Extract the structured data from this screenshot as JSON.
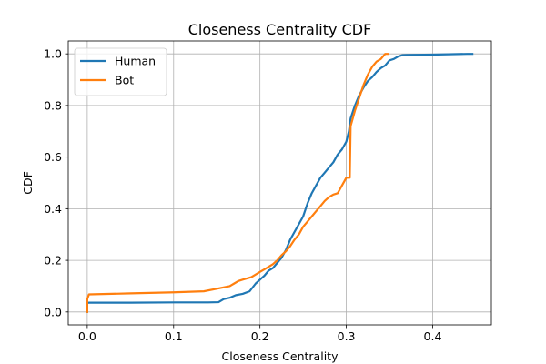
{
  "chart_data": {
    "type": "line",
    "title": "Closeness Centrality CDF",
    "xlabel": "Closeness Centrality",
    "ylabel": "CDF",
    "xlim": [
      -0.022,
      0.468
    ],
    "ylim": [
      -0.05,
      1.05
    ],
    "xticks": [
      0.0,
      0.1,
      0.2,
      0.3,
      0.4
    ],
    "xtick_labels": [
      "0.0",
      "0.1",
      "0.2",
      "0.3",
      "0.4"
    ],
    "yticks": [
      0.0,
      0.2,
      0.4,
      0.6,
      0.8,
      1.0
    ],
    "ytick_labels": [
      "0.0",
      "0.2",
      "0.4",
      "0.6",
      "0.8",
      "1.0"
    ],
    "grid": true,
    "legend_position": "top-left",
    "series": [
      {
        "name": "Human",
        "color": "#1f77b4",
        "x": [
          0.0,
          0.0,
          0.002,
          0.05,
          0.1,
          0.14,
          0.152,
          0.158,
          0.165,
          0.172,
          0.18,
          0.188,
          0.195,
          0.2,
          0.205,
          0.21,
          0.215,
          0.22,
          0.225,
          0.23,
          0.235,
          0.24,
          0.245,
          0.25,
          0.255,
          0.26,
          0.265,
          0.27,
          0.275,
          0.28,
          0.285,
          0.29,
          0.295,
          0.3,
          0.303,
          0.305,
          0.31,
          0.315,
          0.32,
          0.325,
          0.33,
          0.335,
          0.34,
          0.345,
          0.35,
          0.355,
          0.36,
          0.365,
          0.37,
          0.4,
          0.44,
          0.446
        ],
        "y": [
          0.0,
          0.035,
          0.036,
          0.036,
          0.037,
          0.037,
          0.038,
          0.05,
          0.055,
          0.065,
          0.07,
          0.08,
          0.11,
          0.125,
          0.14,
          0.16,
          0.17,
          0.19,
          0.21,
          0.24,
          0.28,
          0.31,
          0.34,
          0.37,
          0.42,
          0.46,
          0.49,
          0.52,
          0.54,
          0.56,
          0.58,
          0.61,
          0.63,
          0.66,
          0.7,
          0.75,
          0.8,
          0.84,
          0.87,
          0.895,
          0.91,
          0.93,
          0.945,
          0.955,
          0.975,
          0.98,
          0.99,
          0.995,
          0.996,
          0.997,
          1.0,
          1.0
        ]
      },
      {
        "name": "Bot",
        "color": "#ff7f0e",
        "x": [
          0.0,
          0.0,
          0.002,
          0.05,
          0.1,
          0.135,
          0.15,
          0.165,
          0.17,
          0.175,
          0.18,
          0.185,
          0.19,
          0.195,
          0.2,
          0.205,
          0.21,
          0.215,
          0.22,
          0.225,
          0.23,
          0.235,
          0.24,
          0.245,
          0.25,
          0.255,
          0.26,
          0.265,
          0.27,
          0.275,
          0.28,
          0.285,
          0.29,
          0.295,
          0.3,
          0.304,
          0.305,
          0.31,
          0.315,
          0.32,
          0.325,
          0.33,
          0.335,
          0.34,
          0.345,
          0.348
        ],
        "y": [
          0.0,
          0.05,
          0.068,
          0.072,
          0.076,
          0.08,
          0.09,
          0.1,
          0.11,
          0.12,
          0.125,
          0.13,
          0.135,
          0.145,
          0.155,
          0.165,
          0.175,
          0.185,
          0.2,
          0.22,
          0.235,
          0.255,
          0.28,
          0.3,
          0.33,
          0.35,
          0.37,
          0.39,
          0.41,
          0.43,
          0.445,
          0.455,
          0.46,
          0.49,
          0.52,
          0.52,
          0.72,
          0.78,
          0.83,
          0.88,
          0.92,
          0.95,
          0.97,
          0.98,
          1.0,
          1.0
        ]
      }
    ]
  }
}
